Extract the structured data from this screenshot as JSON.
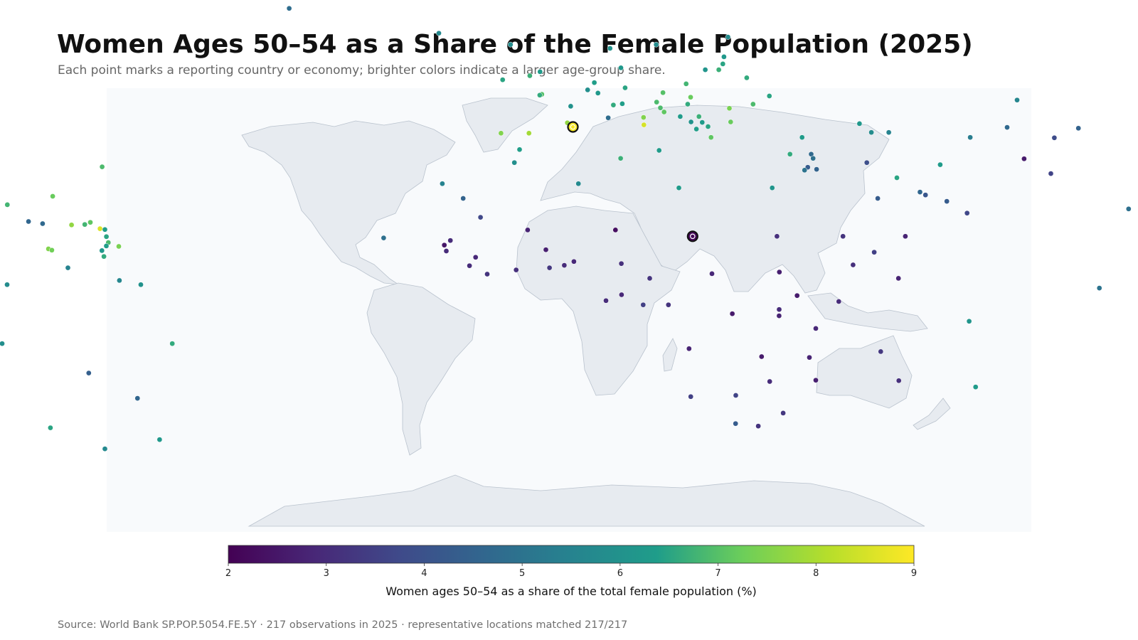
{
  "title": "Women Ages 50–54 as a Share of the Female Population (2025)",
  "subtitle": "Each point marks a reporting country or economy; brighter colors indicate a larger age-group share.",
  "source": "Source: World Bank SP.POP.5054.FE.5Y · 217 observations in 2025 · representative locations matched 217/217",
  "colors": {
    "ocean": "#f8fafc",
    "land": "#e7ebf0",
    "land_border": "#b9c2cd",
    "colormap": "viridis",
    "colormap_stops": [
      "#440154",
      "#482777",
      "#3f4a8a",
      "#31678e",
      "#26838f",
      "#1f9d8a",
      "#6cce5a",
      "#b6de2b",
      "#fee825"
    ]
  },
  "chart_data": {
    "type": "scatter",
    "projection": "robinson",
    "colorbar": {
      "label": "Women ages 50–54 as a share of the total female population (%)",
      "range": [
        2,
        9
      ],
      "ticks": [
        "2",
        "3",
        "4",
        "5",
        "6",
        "7",
        "8",
        "9"
      ]
    },
    "highlighted": [
      {
        "lon": 2.3,
        "lat": 41.5,
        "value": 8.9,
        "note": "highest"
      },
      {
        "lon": 18.5,
        "lat": 15.5,
        "value": 2.1,
        "note": "lowest"
      }
    ],
    "points": [
      {
        "lon": -42,
        "lat": 72,
        "value": 4.8
      },
      {
        "lon": -18,
        "lat": 65,
        "value": 5.7
      },
      {
        "lon": -7,
        "lat": 62,
        "value": 5.8
      },
      {
        "lon": -100,
        "lat": 60,
        "value": 5.9
      },
      {
        "lon": -100,
        "lat": 42,
        "value": 5.7
      },
      {
        "lon": -64,
        "lat": 32,
        "value": 6.9
      },
      {
        "lon": -102,
        "lat": 23,
        "value": 5.6
      },
      {
        "lon": -88,
        "lat": 15,
        "value": 3.4
      },
      {
        "lon": -90,
        "lat": 15.5,
        "value": 3.5
      },
      {
        "lon": -87,
        "lat": 13.5,
        "value": 3.6
      },
      {
        "lon": -85,
        "lat": 12.5,
        "value": 3.8
      },
      {
        "lon": -89,
        "lat": 14,
        "value": 4.6
      },
      {
        "lon": -84,
        "lat": 10,
        "value": 5.6
      },
      {
        "lon": -80,
        "lat": 8.5,
        "value": 5.3
      },
      {
        "lon": -77.5,
        "lat": 18,
        "value": 7.3
      },
      {
        "lon": -77,
        "lat": 20,
        "value": 8.5
      },
      {
        "lon": -76,
        "lat": 23,
        "value": 6.8
      },
      {
        "lon": -72.5,
        "lat": 19,
        "value": 4.6
      },
      {
        "lon": -70.5,
        "lat": 18.5,
        "value": 4.7
      },
      {
        "lon": -70,
        "lat": 25,
        "value": 7.2
      },
      {
        "lon": -66.5,
        "lat": 18.2,
        "value": 7.7
      },
      {
        "lon": -64.7,
        "lat": 18.3,
        "value": 6.8
      },
      {
        "lon": -64,
        "lat": 18.8,
        "value": 7.1
      },
      {
        "lon": -62.5,
        "lat": 17.3,
        "value": 8.6
      },
      {
        "lon": -61.8,
        "lat": 17.1,
        "value": 6.4
      },
      {
        "lon": -61.4,
        "lat": 15.4,
        "value": 6.5
      },
      {
        "lon": -61,
        "lat": 14,
        "value": 6.9
      },
      {
        "lon": -61.2,
        "lat": 13.2,
        "value": 6.4
      },
      {
        "lon": -59.5,
        "lat": 13.1,
        "value": 7.4
      },
      {
        "lon": -61.7,
        "lat": 12.1,
        "value": 6.2
      },
      {
        "lon": -61.3,
        "lat": 10.7,
        "value": 6.6
      },
      {
        "lon": -69,
        "lat": 12.5,
        "value": 7.5
      },
      {
        "lon": -68.5,
        "lat": 12.2,
        "value": 7.3
      },
      {
        "lon": -66,
        "lat": 8,
        "value": 5.5
      },
      {
        "lon": -58.9,
        "lat": 5,
        "value": 5.6
      },
      {
        "lon": -56,
        "lat": 4,
        "value": 6.0
      },
      {
        "lon": -74,
        "lat": 4,
        "value": 5.8
      },
      {
        "lon": -78,
        "lat": -1.5,
        "value": 5.2
      },
      {
        "lon": -75,
        "lat": -10,
        "value": 5.9
      },
      {
        "lon": -52,
        "lat": -10,
        "value": 6.6
      },
      {
        "lon": -64,
        "lat": -17,
        "value": 4.4
      },
      {
        "lon": -58,
        "lat": -23,
        "value": 4.6
      },
      {
        "lon": -71,
        "lat": -30,
        "value": 6.5
      },
      {
        "lon": -64,
        "lat": -35,
        "value": 5.7
      },
      {
        "lon": -56,
        "lat": -32.8,
        "value": 6.2
      },
      {
        "lon": -151,
        "lat": -17.5,
        "value": 6.9
      },
      {
        "lon": -169,
        "lat": -14.3,
        "value": 4.7
      },
      {
        "lon": -172,
        "lat": -13.7,
        "value": 4.5
      },
      {
        "lon": -175,
        "lat": -21,
        "value": 4.5
      },
      {
        "lon": -8,
        "lat": 53,
        "value": 6.5
      },
      {
        "lon": -4,
        "lat": 54,
        "value": 6.7
      },
      {
        "lon": -2.5,
        "lat": 55,
        "value": 6.3
      },
      {
        "lon": -2.2,
        "lat": 49.4,
        "value": 7.0
      },
      {
        "lon": -2.5,
        "lat": 49.2,
        "value": 6.6
      },
      {
        "lon": -8,
        "lat": 40,
        "value": 7.5
      },
      {
        "lon": -4,
        "lat": 40,
        "value": 7.9
      },
      {
        "lon": -5.3,
        "lat": 36.1,
        "value": 6.4
      },
      {
        "lon": -6,
        "lat": 33,
        "value": 5.9
      },
      {
        "lon": -16,
        "lat": 28,
        "value": 5.5
      },
      {
        "lon": 2,
        "lat": 46.5,
        "value": 6.0
      },
      {
        "lon": 7.4,
        "lat": 43.7,
        "value": 4.8
      },
      {
        "lon": 1.5,
        "lat": 42.5,
        "value": 7.7
      },
      {
        "lon": 6,
        "lat": 49.7,
        "value": 6.2
      },
      {
        "lon": 4.5,
        "lat": 50.5,
        "value": 5.9
      },
      {
        "lon": 5.5,
        "lat": 52.3,
        "value": 6.4
      },
      {
        "lon": 9.5,
        "lat": 56,
        "value": 6.2
      },
      {
        "lon": 10,
        "lat": 51,
        "value": 6.5
      },
      {
        "lon": 8.2,
        "lat": 46.8,
        "value": 6.6
      },
      {
        "lon": 9.5,
        "lat": 47.1,
        "value": 6.4
      },
      {
        "lon": 12.5,
        "lat": 43.8,
        "value": 7.5
      },
      {
        "lon": 12.5,
        "lat": 42,
        "value": 8.5
      },
      {
        "lon": 14.5,
        "lat": 35.9,
        "value": 6.3
      },
      {
        "lon": 14.5,
        "lat": 47.5,
        "value": 6.9
      },
      {
        "lon": 15.5,
        "lat": 49.8,
        "value": 7.0
      },
      {
        "lon": 19,
        "lat": 52,
        "value": 6.8
      },
      {
        "lon": 19.5,
        "lat": 48.7,
        "value": 7.2
      },
      {
        "lon": 19,
        "lat": 47,
        "value": 6.6
      },
      {
        "lon": 15,
        "lat": 46.1,
        "value": 6.9
      },
      {
        "lon": 15.5,
        "lat": 45.1,
        "value": 7.1
      },
      {
        "lon": 17.8,
        "lat": 44,
        "value": 6.3
      },
      {
        "lon": 20.5,
        "lat": 44,
        "value": 6.7
      },
      {
        "lon": 19.3,
        "lat": 42.7,
        "value": 6.0
      },
      {
        "lon": 20.9,
        "lat": 42.6,
        "value": 6.3
      },
      {
        "lon": 20,
        "lat": 41,
        "value": 6.4
      },
      {
        "lon": 21.7,
        "lat": 41.6,
        "value": 6.5
      },
      {
        "lon": 25,
        "lat": 42.7,
        "value": 7.2
      },
      {
        "lon": 25,
        "lat": 46,
        "value": 7.4
      },
      {
        "lon": 28.5,
        "lat": 47,
        "value": 6.9
      },
      {
        "lon": 31,
        "lat": 49,
        "value": 6.5
      },
      {
        "lon": 28,
        "lat": 53.5,
        "value": 6.6
      },
      {
        "lon": 22,
        "lat": 39,
        "value": 7.1
      },
      {
        "lon": 33,
        "lat": 35,
        "value": 6.6
      },
      {
        "lon": 35,
        "lat": 39,
        "value": 6.3
      },
      {
        "lon": 15,
        "lat": 62,
        "value": 5.8
      },
      {
        "lon": 26,
        "lat": 64,
        "value": 5.8
      },
      {
        "lon": 25,
        "lat": 58.8,
        "value": 6.2
      },
      {
        "lon": 24.7,
        "lat": 57,
        "value": 6.5
      },
      {
        "lon": 24,
        "lat": 55.5,
        "value": 6.7
      },
      {
        "lon": 8,
        "lat": 61,
        "value": 6.0
      },
      {
        "lon": 22,
        "lat": 55.5,
        "value": 6.1
      },
      {
        "lon": 43.5,
        "lat": 42.3,
        "value": 6.2
      },
      {
        "lon": 45,
        "lat": 40.2,
        "value": 5.8
      },
      {
        "lon": 47.5,
        "lat": 40.2,
        "value": 5.5
      },
      {
        "lon": 36,
        "lat": 35,
        "value": 4.7
      },
      {
        "lon": 36.5,
        "lat": 31.4,
        "value": 4.5
      },
      {
        "lon": 35.3,
        "lat": 31.9,
        "value": 4.3
      },
      {
        "lon": 34.8,
        "lat": 31.2,
        "value": 5.0
      },
      {
        "lon": 36.2,
        "lat": 34,
        "value": 4.9
      },
      {
        "lon": 43.7,
        "lat": 33,
        "value": 3.9
      },
      {
        "lon": 47.6,
        "lat": 29.4,
        "value": 6.5
      },
      {
        "lon": 54,
        "lat": 32.5,
        "value": 6.3
      },
      {
        "lon": 44.5,
        "lat": 24.5,
        "value": 4.3
      },
      {
        "lon": 50.5,
        "lat": 26,
        "value": 4.6
      },
      {
        "lon": 51.2,
        "lat": 25.3,
        "value": 4.1
      },
      {
        "lon": 54,
        "lat": 23.8,
        "value": 4.3
      },
      {
        "lon": 56.5,
        "lat": 21,
        "value": 3.7
      },
      {
        "lon": 47.5,
        "lat": 15.5,
        "value": 2.8
      },
      {
        "lon": 43,
        "lat": 11.7,
        "value": 3.5
      },
      {
        "lon": 39,
        "lat": 15.5,
        "value": 3.2
      },
      {
        "lon": 40,
        "lat": 8.7,
        "value": 3.1
      },
      {
        "lon": 46,
        "lat": 5.5,
        "value": 2.8
      },
      {
        "lon": 30,
        "lat": 27,
        "value": 6.1
      },
      {
        "lon": 17,
        "lat": 27,
        "value": 6.3
      },
      {
        "lon": 9,
        "lat": 34,
        "value": 6.7
      },
      {
        "lon": 3,
        "lat": 28,
        "value": 5.7
      },
      {
        "lon": -13,
        "lat": 24.5,
        "value": 4.5
      },
      {
        "lon": -10.5,
        "lat": 20,
        "value": 3.7
      },
      {
        "lon": -23.6,
        "lat": 15.1,
        "value": 4.9
      },
      {
        "lon": -14.5,
        "lat": 14.5,
        "value": 3.0
      },
      {
        "lon": -15.3,
        "lat": 13.4,
        "value": 2.5
      },
      {
        "lon": -15,
        "lat": 12,
        "value": 3.0
      },
      {
        "lon": -11,
        "lat": 10.5,
        "value": 2.9
      },
      {
        "lon": -11.8,
        "lat": 8.5,
        "value": 3.0
      },
      {
        "lon": -9.4,
        "lat": 6.5,
        "value": 3.2
      },
      {
        "lon": -5.5,
        "lat": 7.5,
        "value": 3.1
      },
      {
        "lon": -4,
        "lat": 17,
        "value": 2.8
      },
      {
        "lon": -1.5,
        "lat": 12.3,
        "value": 2.7
      },
      {
        "lon": -1,
        "lat": 8,
        "value": 3.3
      },
      {
        "lon": 1,
        "lat": 8.6,
        "value": 3.0
      },
      {
        "lon": 2.3,
        "lat": 9.5,
        "value": 2.9
      },
      {
        "lon": 8.7,
        "lat": 9,
        "value": 3.1
      },
      {
        "lon": 8,
        "lat": 17,
        "value": 2.3
      },
      {
        "lon": 18.5,
        "lat": 15.5,
        "value": 2.1
      },
      {
        "lon": 30,
        "lat": 15.5,
        "value": 3.1
      },
      {
        "lon": 30,
        "lat": 7,
        "value": 2.7
      },
      {
        "lon": 12.5,
        "lat": 5.5,
        "value": 3.2
      },
      {
        "lon": 20.9,
        "lat": 6.6,
        "value": 2.9
      },
      {
        "lon": 8.7,
        "lat": 1.6,
        "value": 2.9
      },
      {
        "lon": 6.6,
        "lat": 0.2,
        "value": 3.0
      },
      {
        "lon": 11.6,
        "lat": -0.8,
        "value": 3.5
      },
      {
        "lon": 15,
        "lat": -0.8,
        "value": 3.2
      },
      {
        "lon": 23.6,
        "lat": -2.9,
        "value": 2.6
      },
      {
        "lon": 29.9,
        "lat": -1.9,
        "value": 3.0
      },
      {
        "lon": 29.9,
        "lat": -3.4,
        "value": 2.8
      },
      {
        "lon": 32.3,
        "lat": 1.4,
        "value": 2.6
      },
      {
        "lon": 37.9,
        "lat": 0,
        "value": 3.0
      },
      {
        "lon": 34.9,
        "lat": -6.4,
        "value": 2.9
      },
      {
        "lon": 17.9,
        "lat": -11.2,
        "value": 2.8
      },
      {
        "lon": 27.8,
        "lat": -13.1,
        "value": 2.6
      },
      {
        "lon": 34.3,
        "lat": -13.3,
        "value": 2.8
      },
      {
        "lon": 35.5,
        "lat": -18.7,
        "value": 2.7
      },
      {
        "lon": 29.2,
        "lat": -19,
        "value": 3.0
      },
      {
        "lon": 18.5,
        "lat": -22.6,
        "value": 3.5
      },
      {
        "lon": 24.7,
        "lat": -22.3,
        "value": 3.6
      },
      {
        "lon": 25,
        "lat": -29,
        "value": 4.3
      },
      {
        "lon": 28.2,
        "lat": -29.6,
        "value": 3.2
      },
      {
        "lon": 31.5,
        "lat": -26.5,
        "value": 3.3
      },
      {
        "lon": 46.9,
        "lat": -18.8,
        "value": 3.1
      },
      {
        "lon": 43.9,
        "lat": -11.9,
        "value": 3.3
      },
      {
        "lon": 57.6,
        "lat": -20.3,
        "value": 6.3
      },
      {
        "lon": 55.5,
        "lat": -4.7,
        "value": 6.1
      },
      {
        "lon": 73,
        "lat": 3.2,
        "value": 5.0
      },
      {
        "lon": 81,
        "lat": 7.9,
        "value": 6.0
      },
      {
        "lon": 78.9,
        "lat": 22,
        "value": 4.9
      },
      {
        "lon": 69.3,
        "lat": 30.4,
        "value": 3.6
      },
      {
        "lon": 66,
        "lat": 33.9,
        "value": 2.6
      },
      {
        "lon": 59,
        "lat": 39,
        "value": 5.3
      },
      {
        "lon": 64.6,
        "lat": 41.4,
        "value": 4.7
      },
      {
        "lon": 71,
        "lat": 38.9,
        "value": 3.8
      },
      {
        "lon": 74.8,
        "lat": 41.2,
        "value": 4.5
      },
      {
        "lon": 67,
        "lat": 48,
        "value": 5.6
      },
      {
        "lon": 100,
        "lat": 60,
        "value": 6.2
      },
      {
        "lon": 104,
        "lat": 46.9,
        "value": 5.2
      },
      {
        "lon": 84.1,
        "lat": 28.4,
        "value": 4.5
      },
      {
        "lon": 90.4,
        "lat": 27.5,
        "value": 4.7
      },
      {
        "lon": 90.4,
        "lat": 23.7,
        "value": 4.6
      },
      {
        "lon": 96,
        "lat": 21.9,
        "value": 5.7
      },
      {
        "lon": 101,
        "lat": 15.9,
        "value": 7.8
      },
      {
        "lon": 102.5,
        "lat": 19.9,
        "value": 4.6
      },
      {
        "lon": 105,
        "lat": 12.6,
        "value": 4.0
      },
      {
        "lon": 106,
        "lat": 16,
        "value": 6.2
      },
      {
        "lon": 104,
        "lat": 35.9,
        "value": 8.2
      },
      {
        "lon": 114.2,
        "lat": 22.3,
        "value": 7.9
      },
      {
        "lon": 113.5,
        "lat": 22.2,
        "value": 6.0
      },
      {
        "lon": 121,
        "lat": 23.7,
        "value": 8.6
      },
      {
        "lon": 127.8,
        "lat": 36.5,
        "value": 7.7
      },
      {
        "lon": 127.5,
        "lat": 40.3,
        "value": 7.6
      },
      {
        "lon": 138,
        "lat": 36.2,
        "value": 7.4
      },
      {
        "lon": 101.9,
        "lat": 4.2,
        "value": 6.0
      },
      {
        "lon": 103.8,
        "lat": 1.35,
        "value": 7.0
      },
      {
        "lon": 114.7,
        "lat": 4.5,
        "value": 6.5
      },
      {
        "lon": 113.9,
        "lat": -0.8,
        "value": 5.6
      },
      {
        "lon": 121.8,
        "lat": 12.9,
        "value": 4.3
      },
      {
        "lon": 125.7,
        "lat": -8.8,
        "value": 3.6
      },
      {
        "lon": 143.9,
        "lat": -6.3,
        "value": 4.1
      },
      {
        "lon": 144.8,
        "lat": 13.4,
        "value": 7.4
      },
      {
        "lon": 145.7,
        "lat": 15.2,
        "value": 8.9
      },
      {
        "lon": 134.6,
        "lat": 7.5,
        "value": 7.3
      },
      {
        "lon": 158.2,
        "lat": 6.9,
        "value": 4.4
      },
      {
        "lon": 167.5,
        "lat": 9.5,
        "value": 5.0
      },
      {
        "lon": 173,
        "lat": 1.9,
        "value": 4.2
      },
      {
        "lon": 166.9,
        "lat": -0.5,
        "value": 3.9
      },
      {
        "lon": 160.2,
        "lat": -9.6,
        "value": 4.1
      },
      {
        "lon": 166.9,
        "lat": -15.4,
        "value": 4.0
      },
      {
        "lon": 179.2,
        "lat": -8.5,
        "value": 4.3
      },
      {
        "lon": 178,
        "lat": -17.7,
        "value": 4.6
      },
      {
        "lon": 165.6,
        "lat": -21.3,
        "value": 6.8
      },
      {
        "lon": 134,
        "lat": -25.3,
        "value": 6.2
      },
      {
        "lon": 174.9,
        "lat": -40.9,
        "value": 5.8
      }
    ]
  }
}
